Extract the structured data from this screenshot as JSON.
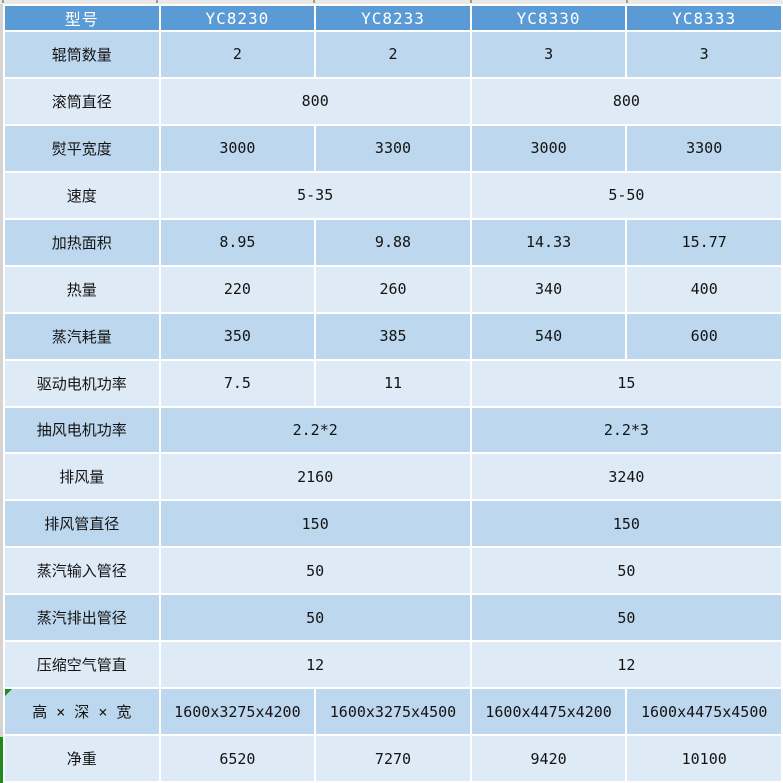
{
  "table": {
    "header": {
      "label": "型号",
      "models": [
        "YC8230",
        "YC8233",
        "YC8330",
        "YC8333"
      ]
    },
    "rows": [
      {
        "label": "辊筒数量",
        "cells": [
          {
            "text": "2",
            "span": 1
          },
          {
            "text": "2",
            "span": 1
          },
          {
            "text": "3",
            "span": 1
          },
          {
            "text": "3",
            "span": 1
          }
        ]
      },
      {
        "label": "滚筒直径",
        "cells": [
          {
            "text": "800",
            "span": 2
          },
          {
            "text": "800",
            "span": 2
          }
        ]
      },
      {
        "label": "熨平宽度",
        "cells": [
          {
            "text": "3000",
            "span": 1
          },
          {
            "text": "3300",
            "span": 1
          },
          {
            "text": "3000",
            "span": 1
          },
          {
            "text": "3300",
            "span": 1
          }
        ]
      },
      {
        "label": "速度",
        "cells": [
          {
            "text": "5-35",
            "span": 2
          },
          {
            "text": "5-50",
            "span": 2
          }
        ]
      },
      {
        "label": "加热面积",
        "cells": [
          {
            "text": "8.95",
            "span": 1
          },
          {
            "text": "9.88",
            "span": 1
          },
          {
            "text": "14.33",
            "span": 1
          },
          {
            "text": "15.77",
            "span": 1
          }
        ]
      },
      {
        "label": "热量",
        "cells": [
          {
            "text": "220",
            "span": 1
          },
          {
            "text": "260",
            "span": 1
          },
          {
            "text": "340",
            "span": 1
          },
          {
            "text": "400",
            "span": 1
          }
        ]
      },
      {
        "label": "蒸汽耗量",
        "cells": [
          {
            "text": "350",
            "span": 1
          },
          {
            "text": "385",
            "span": 1
          },
          {
            "text": "540",
            "span": 1
          },
          {
            "text": "600",
            "span": 1
          }
        ]
      },
      {
        "label": "驱动电机功率",
        "cells": [
          {
            "text": "7.5",
            "span": 1
          },
          {
            "text": "11",
            "span": 1
          },
          {
            "text": "15",
            "span": 2
          }
        ]
      },
      {
        "label": "抽风电机功率",
        "cells": [
          {
            "text": "2.2*2",
            "span": 2
          },
          {
            "text": "2.2*3",
            "span": 2
          }
        ]
      },
      {
        "label": "排风量",
        "cells": [
          {
            "text": "2160",
            "span": 2
          },
          {
            "text": "3240",
            "span": 2
          }
        ]
      },
      {
        "label": "排风管直径",
        "cells": [
          {
            "text": "150",
            "span": 2
          },
          {
            "text": "150",
            "span": 2
          }
        ]
      },
      {
        "label": "蒸汽输入管径",
        "cells": [
          {
            "text": "50",
            "span": 2
          },
          {
            "text": "50",
            "span": 2
          }
        ]
      },
      {
        "label": "蒸汽排出管径",
        "cells": [
          {
            "text": "50",
            "span": 2
          },
          {
            "text": "50",
            "span": 2
          }
        ]
      },
      {
        "label": "压缩空气管直",
        "cells": [
          {
            "text": "12",
            "span": 2
          },
          {
            "text": "12",
            "span": 2
          }
        ]
      },
      {
        "label": "高 × 深 × 宽",
        "flag": true,
        "cells": [
          {
            "text": "1600x3275x4200",
            "span": 1
          },
          {
            "text": "1600x3275x4500",
            "span": 1
          },
          {
            "text": "1600x4475x4200",
            "span": 1
          },
          {
            "text": "1600x4475x4500",
            "span": 1
          }
        ]
      },
      {
        "label": "净重",
        "cells": [
          {
            "text": "6520",
            "span": 1
          },
          {
            "text": "7270",
            "span": 1
          },
          {
            "text": "9420",
            "span": 1
          },
          {
            "text": "10100",
            "span": 1
          }
        ]
      }
    ]
  },
  "colors": {
    "header_bg": "#5b9bd5",
    "header_text": "#ffffff",
    "row_medium": "#bdd7ee",
    "row_light": "#deeaf6",
    "gridline": "#ffffff",
    "cell_text": "#141414",
    "edge_strip": "#d7d4cf",
    "top_strip": "#e9e9e9",
    "tick": "#9b9b9b",
    "green_flag": "#1f8b1f"
  },
  "layout_marks": {
    "tick_positions": [
      2,
      156,
      313,
      470,
      626
    ]
  }
}
